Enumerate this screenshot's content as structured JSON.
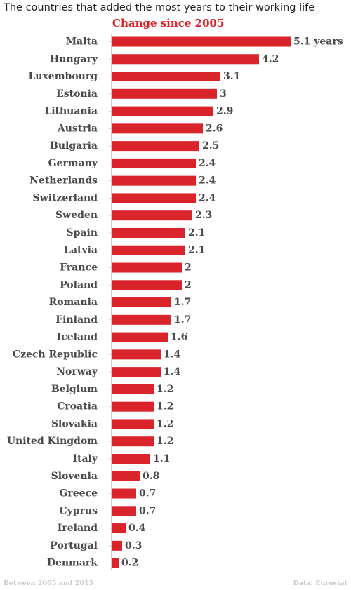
{
  "title": "The countries that added the most years to their working life",
  "footer": {
    "note": "Between 2005 and 2015",
    "source": "Data: Eurostat"
  },
  "colors": {
    "bar": "#d9242b",
    "label": "#4a4a4a",
    "subtitle": "#d9242b"
  },
  "chart_data": {
    "type": "bar",
    "orientation": "horizontal",
    "title": "Change since 2005",
    "categories": [
      "Malta",
      "Hungary",
      "Luxembourg",
      "Estonia",
      "Lithuania",
      "Austria",
      "Bulgaria",
      "Germany",
      "Netherlands",
      "Switzerland",
      "Sweden",
      "Spain",
      "Latvia",
      "France",
      "Poland",
      "Romania",
      "Finland",
      "Iceland",
      "Czech Republic",
      "Norway",
      "Belgium",
      "Croatia",
      "Slovakia",
      "United Kingdom",
      "Italy",
      "Slovenia",
      "Greece",
      "Cyprus",
      "Ireland",
      "Portugal",
      "Denmark"
    ],
    "values": [
      5.1,
      4.2,
      3.1,
      3,
      2.9,
      2.6,
      2.5,
      2.4,
      2.4,
      2.4,
      2.3,
      2.1,
      2.1,
      2,
      2,
      1.7,
      1.7,
      1.6,
      1.4,
      1.4,
      1.2,
      1.2,
      1.2,
      1.2,
      1.1,
      0.8,
      0.7,
      0.7,
      0.4,
      0.3,
      0.2
    ],
    "value_labels": [
      "5.1 years",
      "4.2",
      "3.1",
      "3",
      "2.9",
      "2.6",
      "2.5",
      "2.4",
      "2.4",
      "2.4",
      "2.3",
      "2.1",
      "2.1",
      "2",
      "2",
      "1.7",
      "1.7",
      "1.6",
      "1.4",
      "1.4",
      "1.2",
      "1.2",
      "1.2",
      "1.2",
      "1.1",
      "0.8",
      "0.7",
      "0.7",
      "0.4",
      "0.3",
      "0.2"
    ],
    "xlim": [
      0,
      5.1
    ],
    "grid": false,
    "legend": "none"
  }
}
